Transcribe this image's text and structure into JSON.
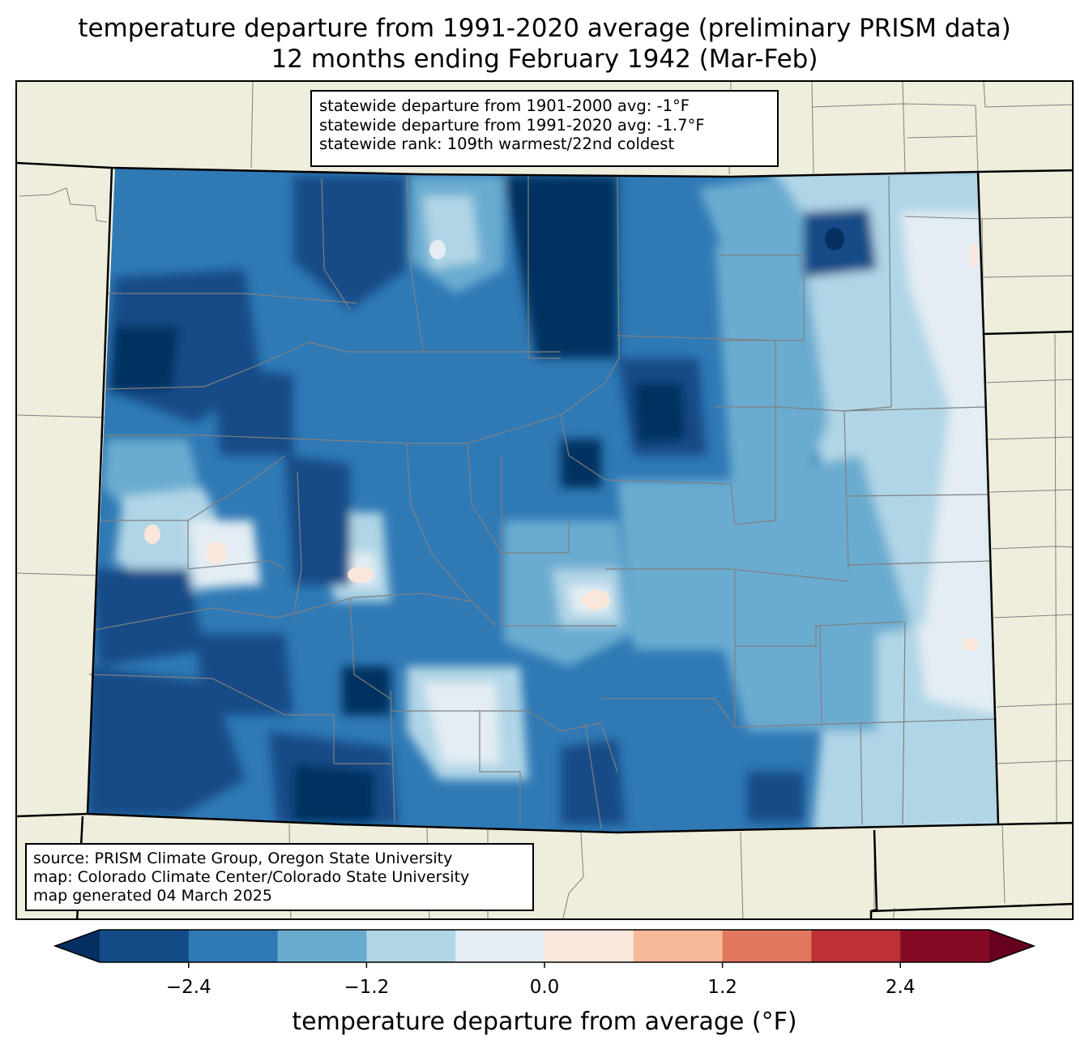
{
  "title": {
    "line1": "temperature departure from 1991-2020 average (preliminary PRISM data)",
    "line2": "12 months ending February 1942 (Mar-Feb)"
  },
  "stats": {
    "line1": "statewide departure from 1901-2000 avg: -1°F",
    "line2": "statewide departure from 1991-2020 avg: -1.7°F",
    "line3": "statewide rank: 109th warmest/22nd coldest"
  },
  "source": {
    "line1": "source: PRISM Climate Group, Oregon State University",
    "line2": "map: Colorado Climate Center/Colorado State University",
    "line3": "map generated 04 March 2025"
  },
  "colorbar": {
    "label": "temperature departure from average (°F)",
    "ticks": [
      "−2.4",
      "−1.2",
      "0.0",
      "1.2",
      "2.4"
    ],
    "tick_values": [
      -2.4,
      -1.2,
      0.0,
      1.2,
      2.4
    ],
    "range": [
      -3.0,
      3.0
    ],
    "bin_width": 0.6,
    "colors": [
      "#053061",
      "#134c87",
      "#2f79b5",
      "#6aacd0",
      "#b0d5e6",
      "#e3edf3",
      "#fae7dc",
      "#f7b799",
      "#e0775f",
      "#bd3036",
      "#870a24",
      "#67001f"
    ],
    "extend": "both"
  },
  "map_colors": {
    "background": "#efeedc",
    "county_lines": "#808080",
    "state_lines": "#000000"
  }
}
